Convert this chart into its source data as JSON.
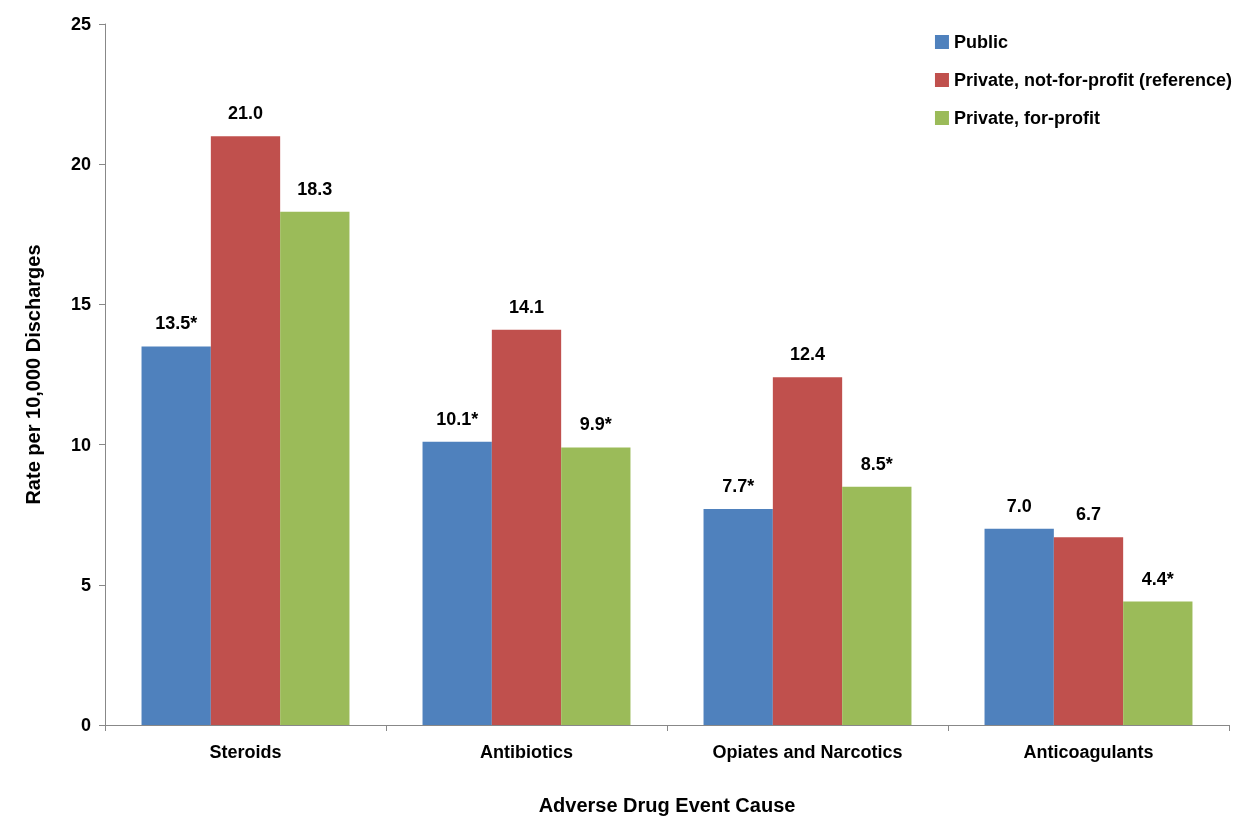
{
  "chart_data": {
    "type": "bar",
    "xlabel": "Adverse Drug Event Cause",
    "ylabel": "Rate per 10,000 Discharges",
    "categories": [
      "Steroids",
      "Antibiotics",
      "Opiates and Narcotics",
      "Anticoagulants"
    ],
    "series": [
      {
        "name": "Public",
        "color": "#4f81bd",
        "values": [
          13.5,
          10.1,
          7.7,
          7.0
        ],
        "value_labels": [
          "13.5*",
          "10.1*",
          "7.7*",
          "7.0"
        ]
      },
      {
        "name": "Private, not-for-profit (reference)",
        "color": "#c0504d",
        "values": [
          21.0,
          14.1,
          12.4,
          6.7
        ],
        "value_labels": [
          "21.0",
          "14.1",
          "12.4",
          "6.7"
        ]
      },
      {
        "name": "Private, for-profit",
        "color": "#9bbb59",
        "values": [
          18.3,
          9.9,
          8.5,
          4.4
        ],
        "value_labels": [
          "18.3",
          "9.9*",
          "8.5*",
          "4.4*"
        ]
      }
    ],
    "ylim": [
      0,
      25
    ],
    "yticks": [
      0,
      5,
      10,
      15,
      20,
      25
    ],
    "grid": false,
    "legend": "top right"
  }
}
